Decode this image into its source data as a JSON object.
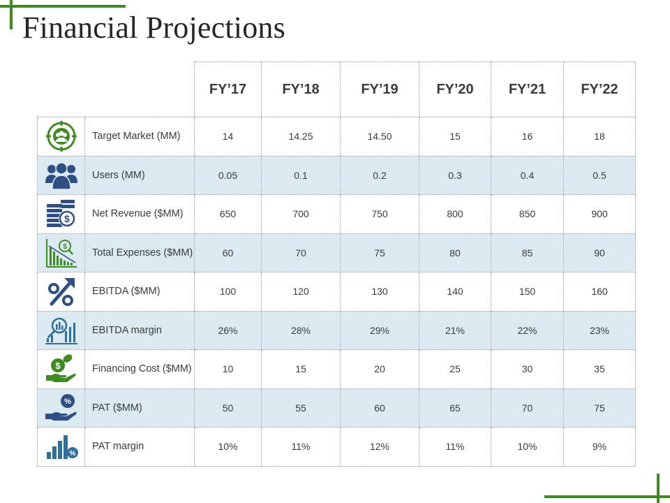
{
  "title": "Financial Projections",
  "colors": {
    "accent": "#3f8a22",
    "icon_blue": "#2f4f83",
    "row_shade": "#daeaf0"
  },
  "table": {
    "years": [
      "FY’17",
      "FY’18",
      "FY’19",
      "FY’20",
      "FY’21",
      "FY’22"
    ],
    "rows": [
      {
        "label": "Target Market (MM)",
        "icon": "target-market-icon",
        "values": [
          "14",
          "14.25",
          "14.50",
          "15",
          "16",
          "18"
        ]
      },
      {
        "label": "Users (MM)",
        "icon": "users-icon",
        "values": [
          "0.05",
          "0.1",
          "0.2",
          "0.3",
          "0.4",
          "0.5"
        ]
      },
      {
        "label": "Net Revenue ($MM)",
        "icon": "revenue-coins-icon",
        "values": [
          "650",
          "700",
          "750",
          "800",
          "850",
          "900"
        ]
      },
      {
        "label": "Total Expenses ($MM)",
        "icon": "expenses-chart-icon",
        "values": [
          "60",
          "70",
          "75",
          "80",
          "85",
          "90"
        ]
      },
      {
        "label": "EBITDA ($MM)",
        "icon": "percent-growth-icon",
        "values": [
          "100",
          "120",
          "130",
          "140",
          "150",
          "160"
        ]
      },
      {
        "label": "EBITDA margin",
        "icon": "magnifier-chart-icon",
        "values": [
          "26%",
          "28%",
          "29%",
          "21%",
          "22%",
          "23%"
        ]
      },
      {
        "label": "Financing Cost ($MM)",
        "icon": "hand-money-icon",
        "values": [
          "10",
          "15",
          "20",
          "25",
          "30",
          "35"
        ]
      },
      {
        "label": "PAT ($MM)",
        "icon": "hand-percent-icon",
        "values": [
          "50",
          "55",
          "60",
          "65",
          "70",
          "75"
        ]
      },
      {
        "label": "PAT margin",
        "icon": "bar-percent-icon",
        "values": [
          "10%",
          "11%",
          "12%",
          "11%",
          "10%",
          "9%"
        ]
      }
    ]
  }
}
